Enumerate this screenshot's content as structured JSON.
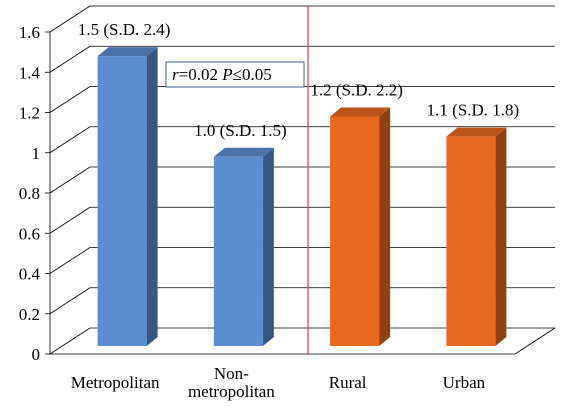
{
  "chart_data": {
    "type": "bar",
    "categories": [
      "Metropolitan",
      "Non-metropolitan",
      "Rural",
      "Urban"
    ],
    "category_lines": [
      [
        "Metropolitan"
      ],
      [
        "Non-",
        "metropolitan"
      ],
      [
        "Rural"
      ],
      [
        "Urban"
      ]
    ],
    "values": [
      1.5,
      1.0,
      1.2,
      1.1
    ],
    "data_labels": [
      "1.5 (S.D. 2.4)",
      "1.0 (S.D. 1.5)",
      "1.2 (S.D. 2.2)",
      "1.1 (S.D. 1.8)"
    ],
    "bar_colors": [
      "#5b8ed1",
      "#5b8ed1",
      "#e8691f",
      "#e8691f"
    ],
    "ylim": [
      0,
      1.6
    ],
    "yticks": [
      "0",
      "0.2",
      "0.4",
      "0.6",
      "0.8",
      "1",
      "1.2",
      "1.4",
      "1.6"
    ],
    "grid": true,
    "annotation": {
      "r_symbol": "r",
      "r_text": "=0.02 ",
      "p_symbol": "P",
      "p_text": "≤0.05"
    },
    "divider_color": "#e03c3c",
    "title": "",
    "xlabel": "",
    "ylabel": ""
  }
}
